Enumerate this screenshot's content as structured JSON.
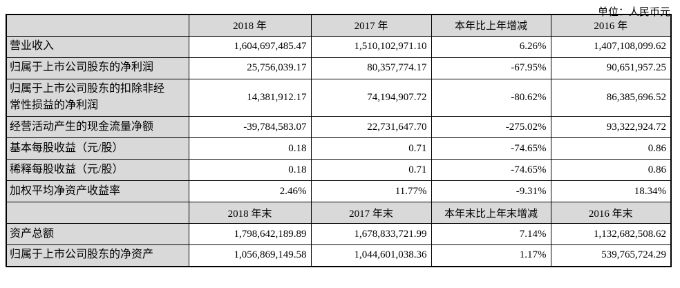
{
  "unit_label": "单位：人民币元",
  "colors": {
    "header_bg": "#d9d9d9",
    "label_bg": "#d9d9d9",
    "border": "#000000",
    "text": "#000000",
    "value_bg": "#ffffff"
  },
  "table": {
    "sections": [
      {
        "headers": [
          "2018 年",
          "2017 年",
          "本年比上年增减",
          "2016 年"
        ],
        "rows": [
          {
            "label": "营业收入",
            "values": [
              "1,604,697,485.47",
              "1,510,102,971.10",
              "6.26%",
              "1,407,108,099.62"
            ]
          },
          {
            "label": "归属于上市公司股东的净利润",
            "values": [
              "25,756,039.17",
              "80,357,774.17",
              "-67.95%",
              "90,651,957.25"
            ]
          },
          {
            "label": "归属于上市公司股东的扣除非经常性损益的净利润",
            "values": [
              "14,381,912.17",
              "74,194,907.72",
              "-80.62%",
              "86,385,696.52"
            ]
          },
          {
            "label": "经营活动产生的现金流量净额",
            "values": [
              "-39,784,583.07",
              "22,731,647.70",
              "-275.02%",
              "93,322,924.72"
            ]
          },
          {
            "label": "基本每股收益（元/股）",
            "values": [
              "0.18",
              "0.71",
              "-74.65%",
              "0.86"
            ]
          },
          {
            "label": "稀释每股收益（元/股）",
            "values": [
              "0.18",
              "0.71",
              "-74.65%",
              "0.86"
            ]
          },
          {
            "label": "加权平均净资产收益率",
            "values": [
              "2.46%",
              "11.77%",
              "-9.31%",
              "18.34%"
            ]
          }
        ]
      },
      {
        "headers": [
          "2018 年末",
          "2017 年末",
          "本年末比上年末增减",
          "2016 年末"
        ],
        "rows": [
          {
            "label": "资产总额",
            "values": [
              "1,798,642,189.89",
              "1,678,833,721.99",
              "7.14%",
              "1,132,682,508.62"
            ]
          },
          {
            "label": "归属于上市公司股东的净资产",
            "values": [
              "1,056,869,149.58",
              "1,044,601,038.36",
              "1.17%",
              "539,765,724.29"
            ]
          }
        ]
      }
    ]
  }
}
